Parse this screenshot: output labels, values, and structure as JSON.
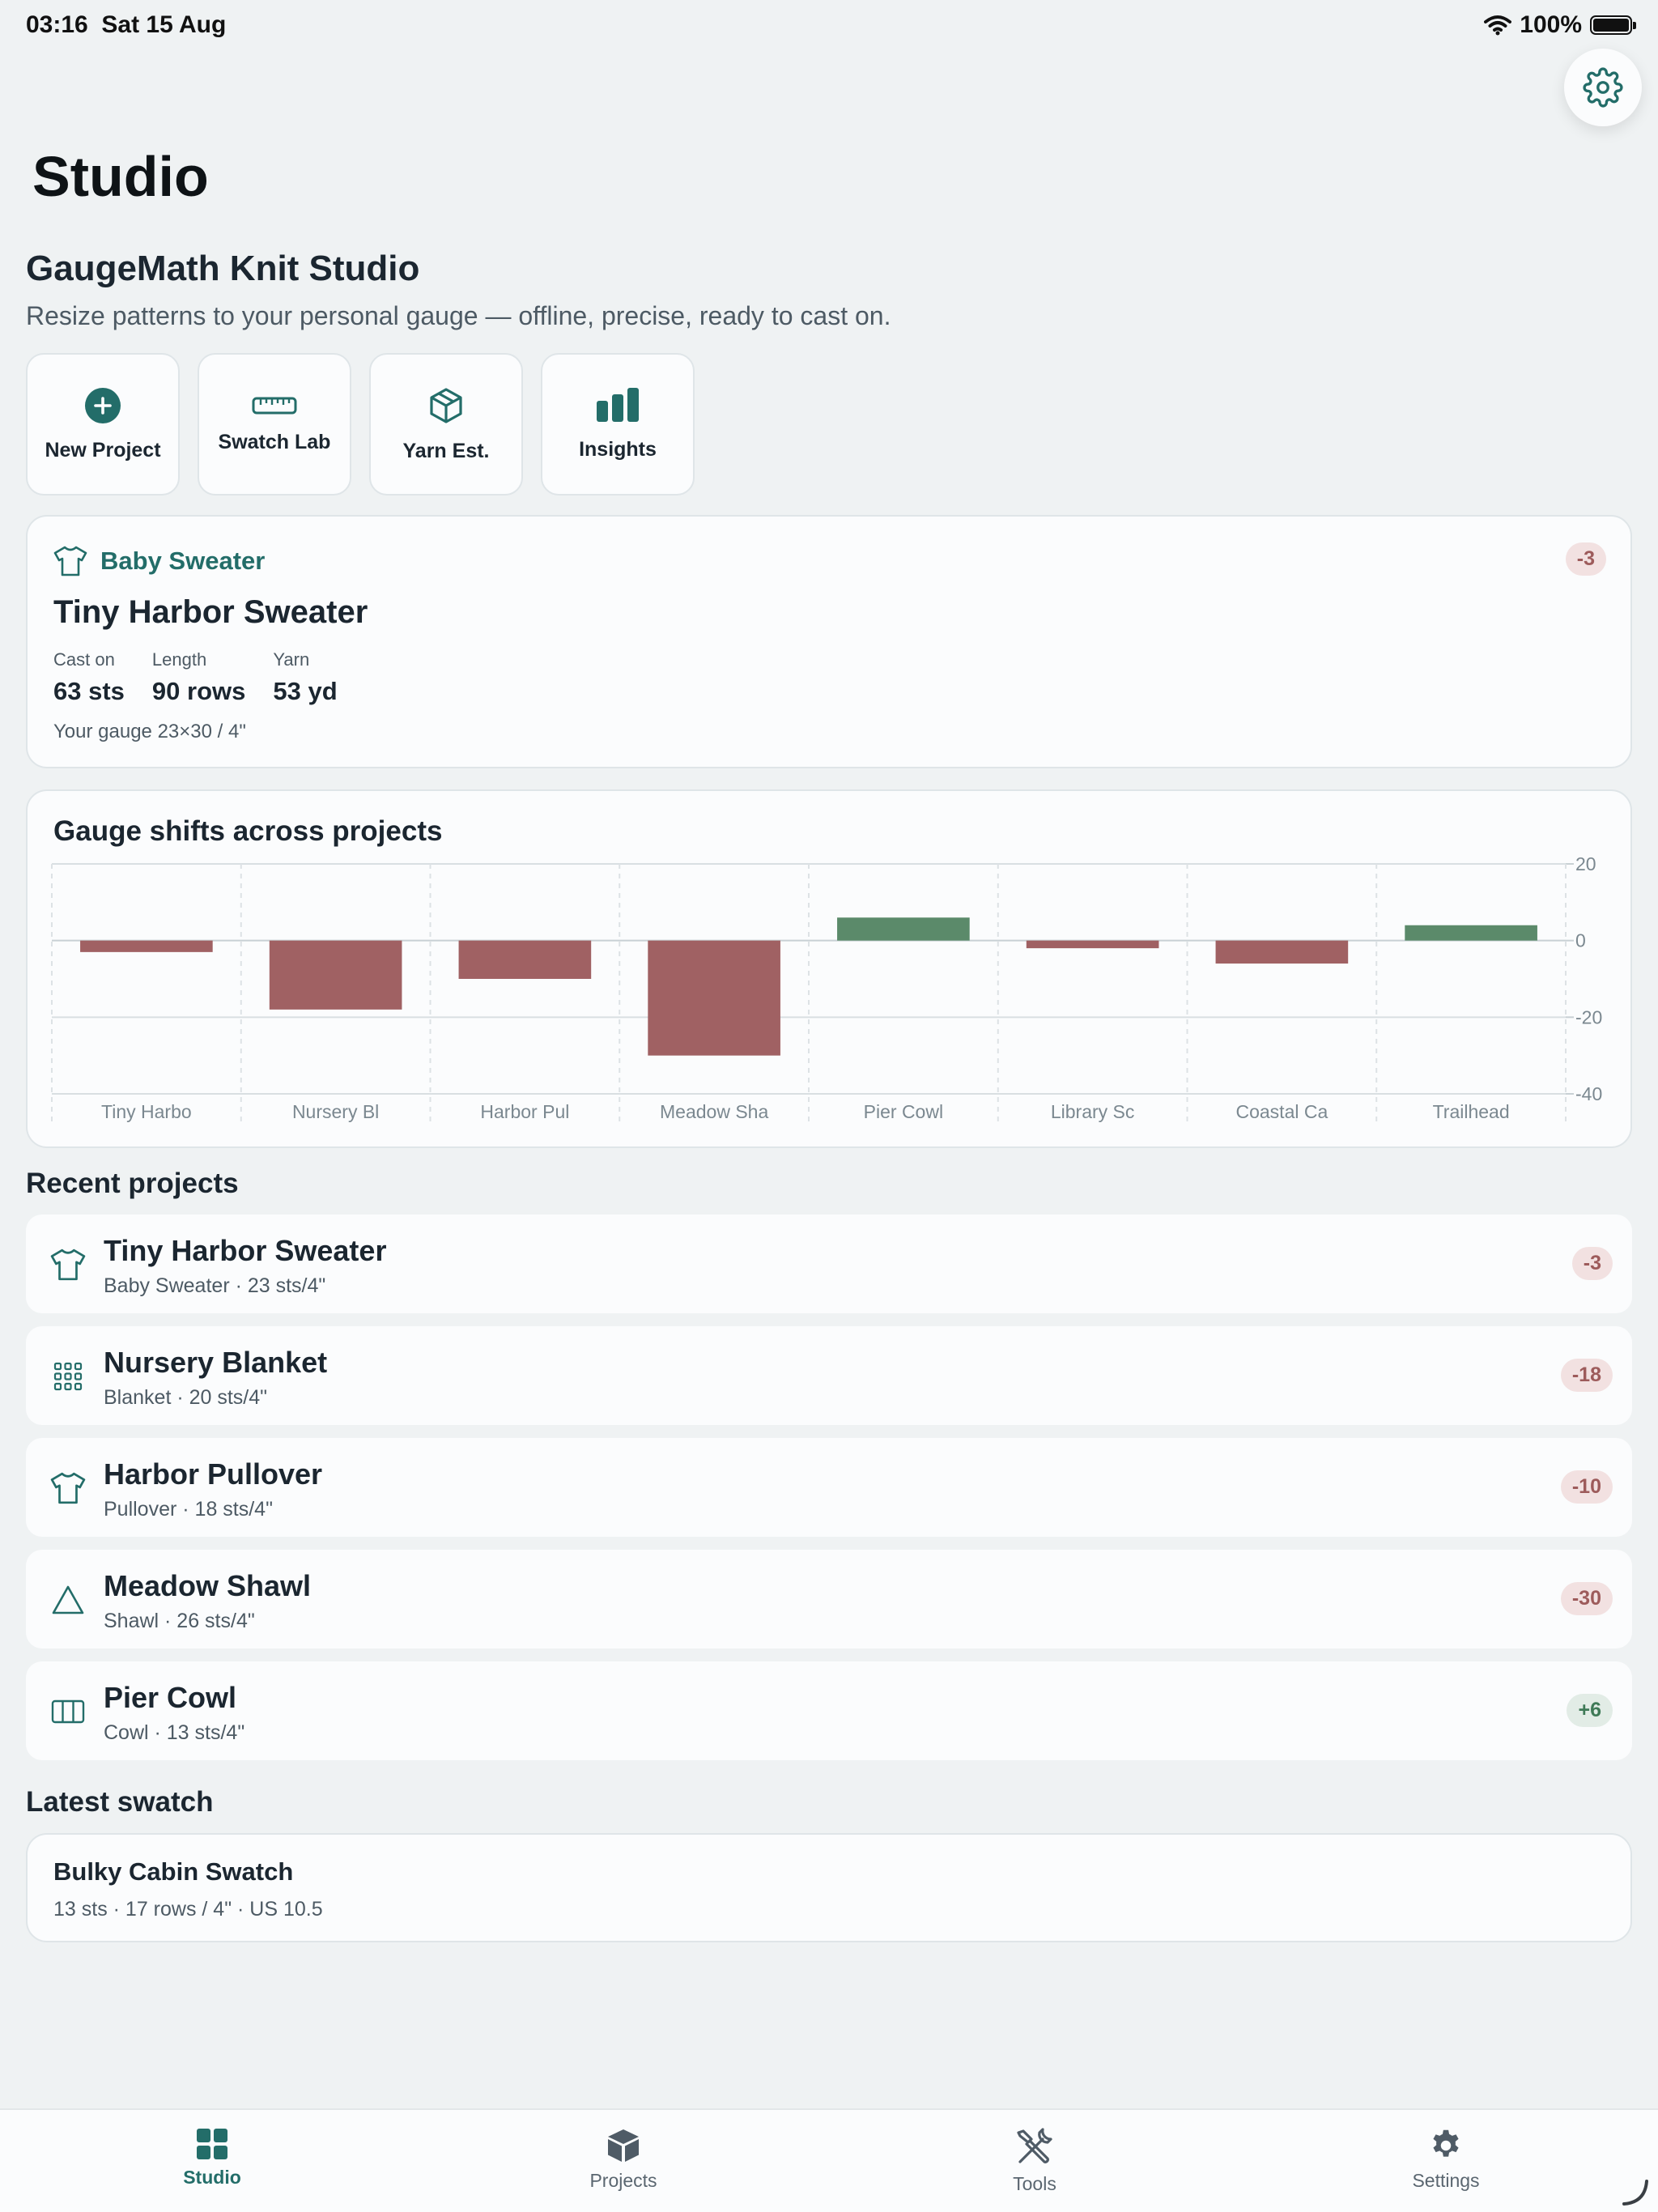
{
  "status": {
    "time": "03:16",
    "date": "Sat 15 Aug",
    "battery": "100%"
  },
  "header": {
    "title": "Studio"
  },
  "hero": {
    "app_name": "GaugeMath Knit Studio",
    "tagline": "Resize patterns to your personal gauge — offline, precise, ready to cast on."
  },
  "quick_actions": [
    {
      "label": "New Project",
      "icon": "plus-circle-icon"
    },
    {
      "label": "Swatch Lab",
      "icon": "ruler-icon"
    },
    {
      "label": "Yarn Est.",
      "icon": "cube-icon"
    },
    {
      "label": "Insights",
      "icon": "bar-chart-icon"
    }
  ],
  "featured": {
    "category": "Baby Sweater",
    "title": "Tiny Harbor Sweater",
    "delta": "-3",
    "stats": [
      {
        "label": "Cast on",
        "value": "63 sts"
      },
      {
        "label": "Length",
        "value": "90 rows"
      },
      {
        "label": "Yarn",
        "value": "53 yd"
      }
    ],
    "gauge": "Your gauge 23×30 / 4\""
  },
  "chart": {
    "title": "Gauge shifts across projects"
  },
  "chart_data": {
    "type": "bar",
    "title": "Gauge shifts across projects",
    "categories": [
      "Tiny Harbo",
      "Nursery Bl",
      "Harbor Pul",
      "Meadow Sha",
      "Pier Cowl",
      "Library Sc",
      "Coastal Ca",
      "Trailhead"
    ],
    "values": [
      -3,
      -18,
      -10,
      -30,
      6,
      -2,
      -6,
      4
    ],
    "ylim": [
      -40,
      20
    ],
    "yticks": [
      "20",
      "0",
      "-20",
      "-40"
    ],
    "grid": true,
    "colors": {
      "negative": "#a06163",
      "positive": "#5b8a6a"
    }
  },
  "recent": {
    "title": "Recent projects",
    "items": [
      {
        "title": "Tiny Harbor Sweater",
        "subtitle": "Baby Sweater · 23 sts/4\"",
        "delta": "-3",
        "icon": "tshirt-icon"
      },
      {
        "title": "Nursery Blanket",
        "subtitle": "Blanket · 20 sts/4\"",
        "delta": "-18",
        "icon": "grid-icon"
      },
      {
        "title": "Harbor Pullover",
        "subtitle": "Pullover · 18 sts/4\"",
        "delta": "-10",
        "icon": "tshirt-icon"
      },
      {
        "title": "Meadow Shawl",
        "subtitle": "Shawl · 26 sts/4\"",
        "delta": "-30",
        "icon": "triangle-icon"
      },
      {
        "title": "Pier Cowl",
        "subtitle": "Cowl · 13 sts/4\"",
        "delta": "+6",
        "icon": "columns-icon"
      }
    ]
  },
  "swatch": {
    "title": "Latest swatch",
    "name": "Bulky Cabin Swatch",
    "detail": "13 sts · 17 rows / 4\" · US 10.5"
  },
  "tabs": [
    {
      "label": "Studio",
      "icon": "dashboard-icon",
      "active": true
    },
    {
      "label": "Projects",
      "icon": "box-icon",
      "active": false
    },
    {
      "label": "Tools",
      "icon": "tools-icon",
      "active": false
    },
    {
      "label": "Settings",
      "icon": "gear-icon",
      "active": false
    }
  ],
  "theme": {
    "accent": "#236d69",
    "negative": "#9d5b5b",
    "positive": "#3f7a57"
  }
}
